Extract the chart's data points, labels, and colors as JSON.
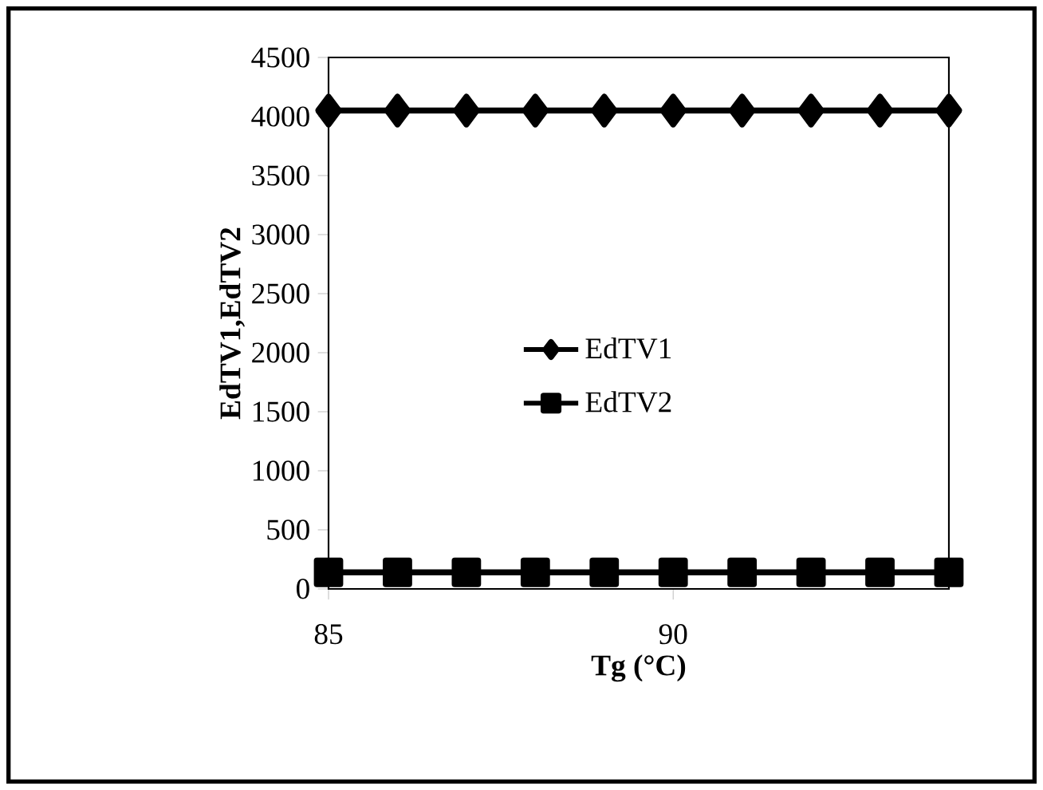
{
  "chart_data": {
    "type": "line",
    "xlabel": "Tg (°C)",
    "ylabel": "EdTV1,EdTV2",
    "x": [
      85,
      86,
      87,
      88,
      89,
      90,
      91,
      92,
      93,
      94
    ],
    "series": [
      {
        "name": "EdTV1",
        "color": "#000000",
        "marker": "diamond",
        "values": [
          4050,
          4050,
          4050,
          4050,
          4050,
          4050,
          4050,
          4050,
          4050,
          4050
        ]
      },
      {
        "name": "EdTV2",
        "color": "#000000",
        "marker": "square",
        "values": [
          140,
          140,
          140,
          140,
          140,
          140,
          140,
          140,
          140,
          140
        ]
      }
    ],
    "xlim": [
      85,
      94
    ],
    "xticks": [
      85,
      90
    ],
    "ylim": [
      0,
      4500
    ],
    "yticks": [
      0,
      500,
      1000,
      1500,
      2000,
      2500,
      3000,
      3500,
      4000,
      4500
    ],
    "legend": "center",
    "grid": false,
    "line_style": "solid"
  }
}
